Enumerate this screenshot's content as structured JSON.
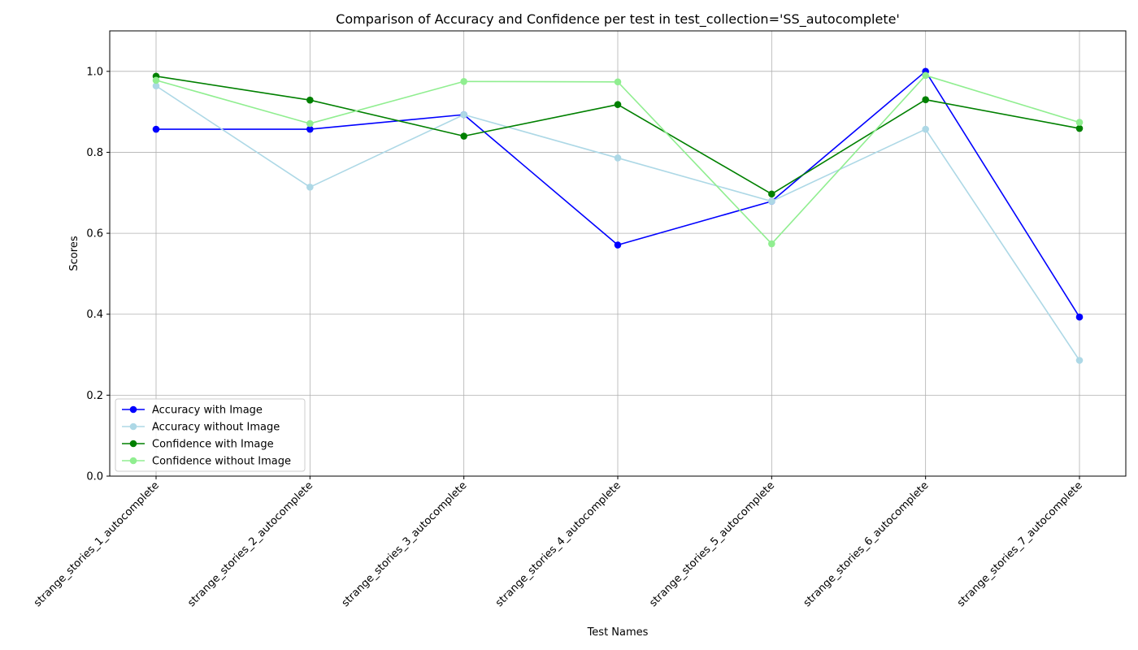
{
  "chart_data": {
    "type": "line",
    "title": "Comparison of Accuracy and Confidence per test in test_collection='SS_autocomplete'",
    "xlabel": "Test Names",
    "ylabel": "Scores",
    "ylim": [
      0,
      1.1
    ],
    "y_ticks": [
      0.0,
      0.2,
      0.4,
      0.6,
      0.8,
      1.0
    ],
    "y_tick_labels": [
      "0.0",
      "0.2",
      "0.4",
      "0.6",
      "0.8",
      "1.0"
    ],
    "grid": true,
    "legend_position": "lower-left",
    "categories": [
      "strange_stories_1_autocomplete",
      "strange_stories_2_autocomplete",
      "strange_stories_3_autocomplete",
      "strange_stories_4_autocomplete",
      "strange_stories_5_autocomplete",
      "strange_stories_6_autocomplete",
      "strange_stories_7_autocomplete"
    ],
    "series": [
      {
        "name": "Accuracy with Image",
        "color": "#0000ff",
        "values": [
          0.857,
          0.857,
          0.893,
          0.571,
          0.679,
          1.0,
          0.393
        ]
      },
      {
        "name": "Accuracy without Image",
        "color": "#add8e6",
        "values": [
          0.964,
          0.714,
          0.893,
          0.786,
          0.679,
          0.857,
          0.286
        ]
      },
      {
        "name": "Confidence with Image",
        "color": "#008000",
        "values": [
          0.988,
          0.929,
          0.84,
          0.918,
          0.697,
          0.93,
          0.859
        ]
      },
      {
        "name": "Confidence without Image",
        "color": "#90ee90",
        "values": [
          0.978,
          0.871,
          0.975,
          0.974,
          0.574,
          0.99,
          0.874
        ]
      }
    ]
  }
}
